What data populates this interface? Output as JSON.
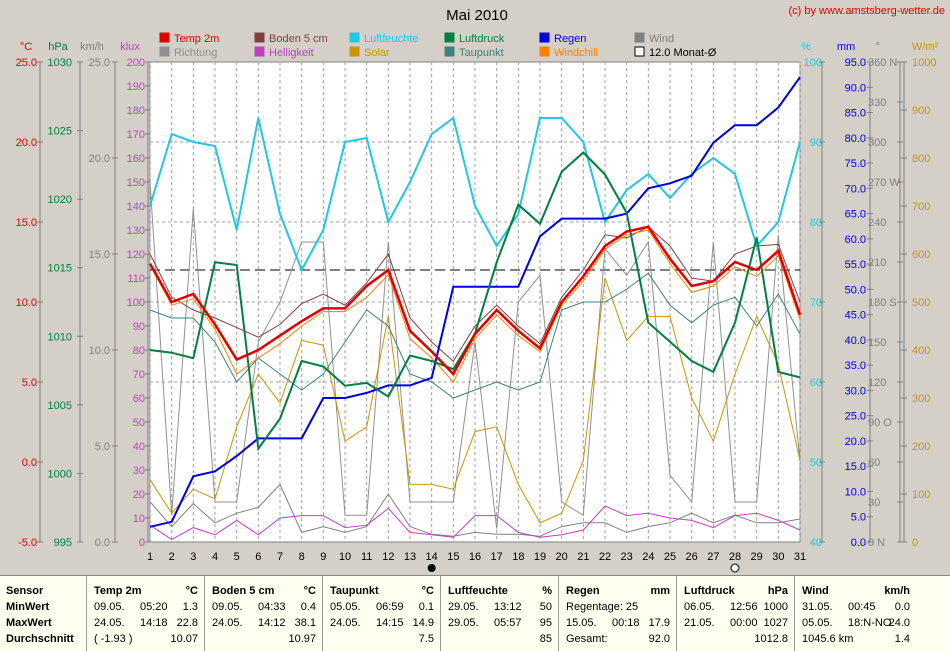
{
  "title": "Mai 2010",
  "copyright": "(c) by www.amstsberg-wetter.de",
  "legend": [
    {
      "label": "Temp 2m",
      "color": "#e00000"
    },
    {
      "label": "Boden 5 cm",
      "color": "#804040"
    },
    {
      "label": "Luftfeuchte",
      "color": "#20c8e0"
    },
    {
      "label": "Luftdruck",
      "color": "#008040"
    },
    {
      "label": "Regen",
      "color": "#0000e0"
    },
    {
      "label": "Wind",
      "color": "#808080"
    },
    {
      "label": "Richtung",
      "color": "#909090"
    },
    {
      "label": "Helligkeit",
      "color": "#c040c0"
    },
    {
      "label": "Solar",
      "color": "#c89600"
    },
    {
      "label": "Taupunkt",
      "color": "#408080"
    },
    {
      "label": "Windchill",
      "color": "#ff8000"
    },
    {
      "label": "12.0 Monat-Ø",
      "color": "#000000"
    }
  ],
  "axes": {
    "temp": {
      "unit": "°C",
      "ticks": [
        "25.0",
        "20.0",
        "15.0",
        "10.0",
        "5.0",
        "0.0",
        "-5.0"
      ],
      "color": "#e00000"
    },
    "hpa": {
      "unit": "hPa",
      "ticks": [
        "1030",
        "1025",
        "1020",
        "1015",
        "1010",
        "1005",
        "1000",
        "995"
      ],
      "color": "#008040"
    },
    "kmh": {
      "unit": "km/h",
      "ticks": [
        "25.0",
        "20.0",
        "15.0",
        "10.0",
        "5.0",
        "0.0"
      ],
      "color": "#808080"
    },
    "klux": {
      "unit": "klux",
      "ticks": [
        "200",
        "190",
        "180",
        "170",
        "160",
        "150",
        "140",
        "130",
        "120",
        "110",
        "100",
        "90",
        "80",
        "70",
        "60",
        "50",
        "40",
        "30",
        "20",
        "10",
        "0"
      ],
      "color": "#c040c0"
    },
    "pct": {
      "unit": "%",
      "ticks": [
        "100",
        "90",
        "80",
        "70",
        "60",
        "50",
        "40"
      ],
      "color": "#20c8e0"
    },
    "mm": {
      "unit": "mm",
      "ticks": [
        "95.0",
        "90.0",
        "85.0",
        "80.0",
        "75.0",
        "70.0",
        "65.0",
        "60.0",
        "55.0",
        "50.0",
        "45.0",
        "40.0",
        "35.0",
        "30.0",
        "25.0",
        "20.0",
        "15.0",
        "10.0",
        "5.0",
        "0.0"
      ],
      "color": "#0000e0"
    },
    "deg": {
      "unit": "°",
      "ticks": [
        "360 N",
        "330",
        "300",
        "270 W",
        "240",
        "210",
        "180 S",
        "150",
        "120",
        "90 O",
        "60",
        "30",
        "0 N"
      ],
      "color": "#808080"
    },
    "wm2": {
      "unit": "W/m²",
      "ticks": [
        "1000",
        "900",
        "800",
        "700",
        "600",
        "500",
        "400",
        "300",
        "200",
        "100",
        "0"
      ],
      "color": "#c89600"
    }
  },
  "chart_data": {
    "type": "line",
    "x": [
      1,
      2,
      3,
      4,
      5,
      6,
      7,
      8,
      9,
      10,
      11,
      12,
      13,
      14,
      15,
      16,
      17,
      18,
      19,
      20,
      21,
      22,
      23,
      24,
      25,
      26,
      27,
      28,
      29,
      30,
      31
    ],
    "ylim_temp": [
      -5,
      25
    ],
    "mean_temp_line": 12.0,
    "series": [
      {
        "name": "Temp 2m",
        "unit": "°C",
        "color": "#e00000",
        "values": [
          12.4,
          10.0,
          10.5,
          8.6,
          6.4,
          7.0,
          7.9,
          8.8,
          9.6,
          9.6,
          11.0,
          12.0,
          8.2,
          6.9,
          5.5,
          8.0,
          9.5,
          8.2,
          7.1,
          10.0,
          11.6,
          13.5,
          14.4,
          14.7,
          12.7,
          11.0,
          11.3,
          12.5,
          12.0,
          13.2,
          9.2
        ]
      },
      {
        "name": "Boden 5 cm",
        "unit": "°C",
        "color": "#804040",
        "values": [
          13.0,
          10.3,
          9.5,
          9.0,
          8.4,
          7.8,
          8.6,
          9.9,
          10.5,
          9.8,
          11.2,
          13.0,
          9.0,
          7.5,
          6.3,
          8.5,
          9.8,
          8.5,
          7.4,
          10.3,
          12.0,
          14.2,
          14.0,
          14.7,
          13.5,
          11.5,
          11.3,
          13.0,
          13.5,
          13.6,
          10.0
        ]
      },
      {
        "name": "Luftfeuchte",
        "unit": "%",
        "color": "#20c8e0",
        "values": [
          82,
          91,
          90,
          89.5,
          79,
          93,
          81,
          74,
          79,
          90,
          90.5,
          80,
          85,
          91,
          93,
          82,
          77,
          81,
          93,
          93,
          90,
          80,
          84,
          86,
          83,
          86,
          88,
          86,
          77,
          80,
          90
        ]
      },
      {
        "name": "Luftdruck",
        "unit": "hPa",
        "color": "#008040",
        "values": [
          1009.0,
          1008.8,
          1008.4,
          1015.4,
          1015.2,
          1001.8,
          1004.0,
          1008.2,
          1007.8,
          1006.4,
          1006.6,
          1005.6,
          1008.6,
          1008.2,
          1007.6,
          1010.2,
          1015.4,
          1019.6,
          1018.2,
          1022.0,
          1023.4,
          1021.8,
          1019.0,
          1011.0,
          1009.6,
          1008.2,
          1007.4,
          1011.0,
          1017.2,
          1007.4,
          1007.0
        ]
      },
      {
        "name": "Regen",
        "unit": "mm",
        "color": "#0000e0",
        "values": [
          3.0,
          4.0,
          13.0,
          14.0,
          17.0,
          20.5,
          20.5,
          20.5,
          28.5,
          28.5,
          29.5,
          31.0,
          31.0,
          32.5,
          50.5,
          50.5,
          50.5,
          50.5,
          60.5,
          64.0,
          64.0,
          64.0,
          65.0,
          70.0,
          71.0,
          72.5,
          79.0,
          82.5,
          82.5,
          86.0,
          92.0
        ]
      },
      {
        "name": "Taupunkt",
        "unit": "°C",
        "color": "#408080",
        "values": [
          9.5,
          9.0,
          9.0,
          7.5,
          5.0,
          6.5,
          5.5,
          4.5,
          5.5,
          7.5,
          9.5,
          8.5,
          5.5,
          5.0,
          4.0,
          4.5,
          5.0,
          4.5,
          5.0,
          9.5,
          10.0,
          10.0,
          10.8,
          11.8,
          9.8,
          8.7,
          9.8,
          10.3,
          8.5,
          10.5,
          8.0
        ]
      },
      {
        "name": "Windchill",
        "unit": "°C",
        "color": "#ff8000",
        "values": [
          12.3,
          9.8,
          10.2,
          8.3,
          5.5,
          6.5,
          7.4,
          8.5,
          9.4,
          9.4,
          10.3,
          11.7,
          7.7,
          6.5,
          5.0,
          7.7,
          9.2,
          7.9,
          6.9,
          9.8,
          11.3,
          13.3,
          14.2,
          14.5,
          12.4,
          10.6,
          11.0,
          12.2,
          11.6,
          12.9,
          8.9
        ]
      },
      {
        "name": "Wind",
        "unit": "km/h",
        "color": "#808080",
        "values": [
          2.1,
          0.8,
          2.0,
          1.0,
          1.5,
          1.8,
          3.0,
          0.5,
          0.8,
          0.5,
          0.8,
          2.5,
          0.8,
          0.4,
          0.3,
          0.5,
          0.4,
          0.4,
          0.3,
          0.8,
          1.0,
          1.0,
          0.5,
          0.8,
          1.0,
          1.5,
          1.0,
          1.4,
          1.0,
          1.0,
          1.2
        ]
      },
      {
        "name": "Richtung",
        "unit": "°",
        "color": "#909090",
        "values": [
          270,
          20,
          250,
          30,
          30,
          150,
          180,
          225,
          225,
          20,
          20,
          225,
          30,
          30,
          30,
          150,
          10,
          180,
          200,
          30,
          20,
          220,
          200,
          225,
          50,
          30,
          225,
          30,
          30,
          230,
          60
        ]
      },
      {
        "name": "Helligkeit",
        "unit": "klux",
        "color": "#c040c0",
        "values": [
          7,
          1,
          6,
          3,
          9,
          3,
          10,
          11,
          11,
          6,
          7,
          14,
          4,
          3,
          2,
          11,
          11,
          4,
          2,
          3,
          5,
          15,
          11,
          12,
          10,
          9,
          6,
          11,
          12,
          9,
          5
        ]
      },
      {
        "name": "Solar",
        "unit": "W/m²",
        "color": "#c89600",
        "values": [
          130,
          60,
          110,
          90,
          240,
          350,
          290,
          420,
          410,
          210,
          240,
          470,
          120,
          120,
          110,
          230,
          240,
          120,
          40,
          60,
          170,
          550,
          420,
          470,
          470,
          300,
          210,
          350,
          470,
          370,
          170
        ]
      }
    ]
  },
  "x_markers": {
    "new_moon_day": "14",
    "full_moon_day": "28"
  },
  "stats": {
    "labels": {
      "sensor": "Sensor",
      "min": "MinWert",
      "max": "MaxWert",
      "avg": "Durchschnitt"
    },
    "temp": {
      "title": "Temp 2m",
      "unit": "°C",
      "min_date": "09.05.",
      "min_time": "05:20",
      "min_val": "1.3",
      "max_date": "24.05.",
      "max_time": "14:18",
      "max_val": "22.8",
      "avg_note": "( -1.93 )",
      "avg_val": "10.07"
    },
    "boden": {
      "title": "Boden 5 cm",
      "unit": "°C",
      "min_date": "09.05.",
      "min_time": "04:33",
      "min_val": "0.4",
      "max_date": "24.05.",
      "max_time": "14:12",
      "max_val": "38.1",
      "avg_val": "10.97"
    },
    "taupunkt": {
      "title": "Taupunkt",
      "unit": "°C",
      "min_date": "05.05.",
      "min_time": "06:59",
      "min_val": "0.1",
      "max_date": "24.05.",
      "max_time": "14:15",
      "max_val": "14.9",
      "avg_val": "7.5"
    },
    "feuchte": {
      "title": "Luftfeuchte",
      "unit": "%",
      "min_date": "29.05.",
      "min_time": "13:12",
      "min_val": "50",
      "max_date": "29.05.",
      "max_time": "05:57",
      "max_val": "95",
      "avg_val": "85"
    },
    "regen": {
      "title": "Regen",
      "unit": "mm",
      "r1_label": "Regentage: 25",
      "r1_val": "",
      "r2_date": "15.05.",
      "r2_time": "00:18",
      "r2_val": "17.9",
      "r3_label": "Gesamt:",
      "r3_val": "92.0"
    },
    "druck": {
      "title": "Luftdruck",
      "unit": "hPa",
      "min_date": "06.05.",
      "min_time": "12:56",
      "min_val": "1000",
      "max_date": "21.05.",
      "max_time": "00:00",
      "max_val": "1027",
      "avg_val": "1012.8"
    },
    "wind": {
      "title": "Wind",
      "unit": "km/h",
      "min_date": "31.05.",
      "min_time": "00:45",
      "min_val": "0.0",
      "max_date": "05.05.",
      "max_time": "18:N-NO",
      "max_val": "24.0",
      "avg_note": "1045.6 km",
      "avg_val": "1.4"
    }
  }
}
